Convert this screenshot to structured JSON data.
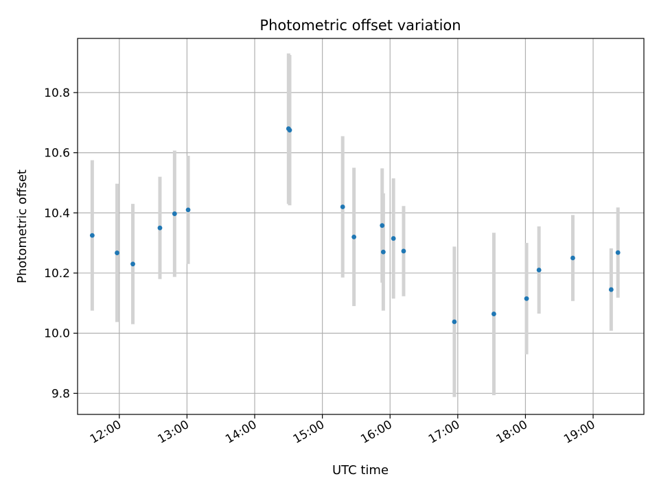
{
  "chart_data": {
    "type": "scatter",
    "title": "Photometric offset variation",
    "xlabel": "UTC time",
    "ylabel": "Photometric offset",
    "x_ticks": [
      "12:00",
      "13:00",
      "14:00",
      "15:00",
      "16:00",
      "17:00",
      "18:00",
      "19:00"
    ],
    "y_ticks": [
      "9.8",
      "10.0",
      "10.2",
      "10.4",
      "10.6",
      "10.8"
    ],
    "xlim": [
      "11:23",
      "19:45"
    ],
    "ylim": [
      9.73,
      10.98
    ],
    "grid": true,
    "marker_color": "#1f77b4",
    "errorbar_color": "#d3d3d3",
    "grid_color": "#b0b0b0",
    "points": [
      {
        "x": "11:36",
        "y": 10.325,
        "err": 0.25
      },
      {
        "x": "11:58",
        "y": 10.267,
        "err": 0.23
      },
      {
        "x": "12:12",
        "y": 10.23,
        "err": 0.2
      },
      {
        "x": "12:36",
        "y": 10.35,
        "err": 0.17
      },
      {
        "x": "12:49",
        "y": 10.397,
        "err": 0.21
      },
      {
        "x": "13:01",
        "y": 10.41,
        "err": 0.18
      },
      {
        "x": "14:30",
        "y": 10.68,
        "err": 0.25
      },
      {
        "x": "14:31",
        "y": 10.675,
        "err": 0.25
      },
      {
        "x": "15:18",
        "y": 10.42,
        "err": 0.235
      },
      {
        "x": "15:28",
        "y": 10.32,
        "err": 0.23
      },
      {
        "x": "15:53",
        "y": 10.358,
        "err": 0.19
      },
      {
        "x": "15:54",
        "y": 10.27,
        "err": 0.195
      },
      {
        "x": "16:03",
        "y": 10.315,
        "err": 0.2
      },
      {
        "x": "16:12",
        "y": 10.273,
        "err": 0.15
      },
      {
        "x": "16:57",
        "y": 10.038,
        "err": 0.25
      },
      {
        "x": "17:32",
        "y": 10.064,
        "err": 0.27
      },
      {
        "x": "18:01",
        "y": 10.115,
        "err": 0.185
      },
      {
        "x": "18:12",
        "y": 10.21,
        "err": 0.145
      },
      {
        "x": "18:42",
        "y": 10.25,
        "err": 0.143
      },
      {
        "x": "19:16",
        "y": 10.145,
        "err": 0.137
      },
      {
        "x": "19:22",
        "y": 10.268,
        "err": 0.15
      }
    ]
  }
}
